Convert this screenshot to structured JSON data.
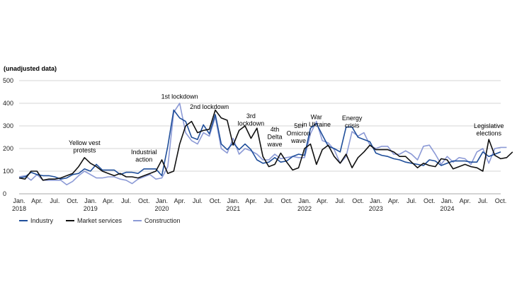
{
  "chart_data": {
    "type": "line",
    "subtitle": "(unadjusted data)",
    "ylim": [
      0,
      500
    ],
    "yticks": [
      "0",
      "100",
      "200",
      "300",
      "400",
      "500"
    ],
    "xlim": [
      0,
      81
    ],
    "x_ticks": [
      {
        "x": 0,
        "label": "Jan."
      },
      {
        "x": 3,
        "label": "Apr."
      },
      {
        "x": 6,
        "label": "Jul."
      },
      {
        "x": 9,
        "label": "Oct."
      },
      {
        "x": 12,
        "label": "Jan."
      },
      {
        "x": 15,
        "label": "Apr."
      },
      {
        "x": 18,
        "label": "Jul."
      },
      {
        "x": 21,
        "label": "Oct."
      },
      {
        "x": 24,
        "label": "Jan."
      },
      {
        "x": 27,
        "label": "Apr."
      },
      {
        "x": 30,
        "label": "Jul."
      },
      {
        "x": 33,
        "label": "Oct."
      },
      {
        "x": 36,
        "label": "Jan."
      },
      {
        "x": 39,
        "label": "Apr."
      },
      {
        "x": 42,
        "label": "Jul."
      },
      {
        "x": 45,
        "label": "Oct."
      },
      {
        "x": 48,
        "label": "Jan."
      },
      {
        "x": 51,
        "label": "Apr."
      },
      {
        "x": 54,
        "label": "Jul."
      },
      {
        "x": 57,
        "label": "Oct."
      },
      {
        "x": 60,
        "label": "Jan."
      },
      {
        "x": 63,
        "label": "Apr."
      },
      {
        "x": 66,
        "label": "Jul."
      },
      {
        "x": 69,
        "label": "Oct."
      },
      {
        "x": 72,
        "label": "Jan."
      },
      {
        "x": 75,
        "label": "Apr."
      },
      {
        "x": 78,
        "label": "Jul."
      },
      {
        "x": 81,
        "label": "Oct."
      }
    ],
    "years": [
      {
        "x": 0,
        "label": "2018"
      },
      {
        "x": 12,
        "label": "2019"
      },
      {
        "x": 24,
        "label": "2020"
      },
      {
        "x": 36,
        "label": "2021"
      },
      {
        "x": 48,
        "label": "2022"
      },
      {
        "x": 60,
        "label": "2023"
      },
      {
        "x": 72,
        "label": "2024"
      }
    ],
    "series": [
      {
        "name": "Industry",
        "color": "#1f4e9a",
        "values": [
          70,
          75,
          95,
          85,
          80,
          80,
          75,
          65,
          70,
          85,
          90,
          110,
          100,
          130,
          105,
          105,
          105,
          85,
          95,
          95,
          90,
          110,
          110,
          110,
          80,
          210,
          370,
          335,
          320,
          250,
          240,
          305,
          265,
          350,
          220,
          195,
          225,
          195,
          220,
          195,
          150,
          135,
          140,
          160,
          140,
          145,
          165,
          175,
          170,
          290,
          310,
          260,
          210,
          200,
          185,
          295,
          295,
          250,
          240,
          230,
          180,
          170,
          165,
          155,
          150,
          140,
          135,
          130,
          125,
          150,
          145,
          125,
          135,
          145,
          145,
          145,
          140,
          140,
          185,
          165,
          175,
          185
        ]
      },
      {
        "name": "Market services",
        "color": "#111111",
        "values": [
          70,
          65,
          100,
          100,
          60,
          65,
          65,
          70,
          80,
          90,
          120,
          160,
          135,
          120,
          100,
          90,
          80,
          90,
          75,
          75,
          70,
          80,
          90,
          100,
          150,
          90,
          100,
          220,
          300,
          320,
          270,
          280,
          285,
          370,
          335,
          325,
          215,
          280,
          300,
          245,
          290,
          165,
          120,
          130,
          180,
          140,
          105,
          115,
          200,
          220,
          130,
          195,
          215,
          165,
          135,
          175,
          115,
          160,
          185,
          215,
          195,
          195,
          195,
          185,
          165,
          165,
          140,
          115,
          135,
          125,
          120,
          155,
          150,
          110,
          120,
          130,
          120,
          115,
          100,
          240,
          170,
          155,
          160,
          185
        ]
      },
      {
        "name": "Construction",
        "color": "#8c9ad6",
        "values": [
          75,
          80,
          60,
          85,
          60,
          60,
          60,
          60,
          40,
          55,
          80,
          100,
          85,
          70,
          70,
          75,
          75,
          65,
          60,
          45,
          65,
          75,
          85,
          65,
          70,
          120,
          360,
          400,
          270,
          235,
          220,
          270,
          255,
          340,
          200,
          180,
          245,
          175,
          200,
          190,
          175,
          150,
          150,
          175,
          155,
          160,
          165,
          160,
          160,
          265,
          320,
          235,
          225,
          195,
          135,
          165,
          275,
          255,
          270,
          215,
          200,
          210,
          210,
          175,
          175,
          190,
          175,
          150,
          210,
          215,
          175,
          130,
          165,
          140,
          160,
          155,
          130,
          185,
          200,
          135,
          200,
          205,
          205
        ]
      }
    ],
    "annotations": [
      {
        "x": 11,
        "y": 215,
        "lines": [
          "Yellow vest",
          "protests"
        ]
      },
      {
        "x": 21,
        "y": 175,
        "lines": [
          "Industrial",
          "action"
        ]
      },
      {
        "x": 27,
        "y": 420,
        "lines": [
          "1st lockdown"
        ]
      },
      {
        "x": 32,
        "y": 375,
        "lines": [
          "2nd lockdown"
        ]
      },
      {
        "x": 39,
        "y": 335,
        "lines": [
          "3rd",
          "lockdown"
        ]
      },
      {
        "x": 43,
        "y": 275,
        "lines": [
          "4th",
          "Delta",
          "wave"
        ]
      },
      {
        "x": 47,
        "y": 290,
        "lines": [
          "5th",
          "Omicron",
          "wave"
        ]
      },
      {
        "x": 50,
        "y": 330,
        "lines": [
          "War",
          "in Ukraine"
        ]
      },
      {
        "x": 56,
        "y": 325,
        "lines": [
          "Energy",
          "crisis"
        ]
      },
      {
        "x": 79,
        "y": 290,
        "lines": [
          "Legislative",
          "elections"
        ]
      }
    ]
  }
}
